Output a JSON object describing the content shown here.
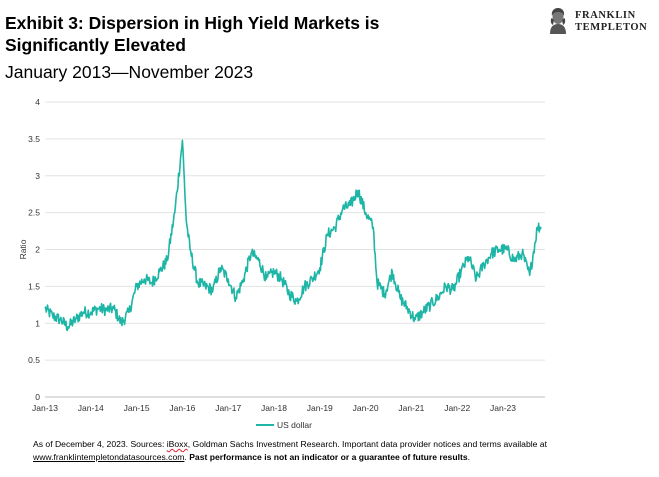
{
  "header": {
    "title": "Exhibit 3: Dispersion in High Yield Markets is Significantly Elevated",
    "subtitle": "January 2013—November 2023"
  },
  "logo": {
    "line1": "FRANKLIN",
    "line2": "TEMPLETON",
    "icon": "franklin-portrait-icon"
  },
  "chart_data": {
    "type": "line",
    "title": "",
    "xlabel": "",
    "ylabel": "Ratio",
    "ylim": [
      0,
      4
    ],
    "yticks": [
      "0",
      "0.5",
      "1",
      "1.5",
      "2",
      "2.5",
      "3",
      "3.5",
      "4"
    ],
    "xlim": [
      "2013-01",
      "2023-12"
    ],
    "xticks": [
      "Jan-13",
      "Jan-14",
      "Jan-15",
      "Jan-16",
      "Jan-17",
      "Jan-18",
      "Jan-19",
      "Jan-20",
      "Jan-21",
      "Jan-22",
      "Jan-23"
    ],
    "grid": "horizontal",
    "legend": "bottom-center",
    "series": [
      {
        "name": "US dollar",
        "color": "#1db5a6",
        "x": [
          "2013-01",
          "2013-03",
          "2013-05",
          "2013-07",
          "2013-09",
          "2013-11",
          "2014-01",
          "2014-03",
          "2014-05",
          "2014-07",
          "2014-09",
          "2014-11",
          "2015-01",
          "2015-03",
          "2015-05",
          "2015-07",
          "2015-09",
          "2015-11",
          "2016-01",
          "2016-02",
          "2016-03",
          "2016-05",
          "2016-07",
          "2016-09",
          "2016-11",
          "2017-01",
          "2017-03",
          "2017-05",
          "2017-07",
          "2017-09",
          "2017-11",
          "2018-01",
          "2018-03",
          "2018-05",
          "2018-07",
          "2018-09",
          "2018-11",
          "2019-01",
          "2019-03",
          "2019-05",
          "2019-07",
          "2019-09",
          "2019-11",
          "2020-01",
          "2020-03",
          "2020-04",
          "2020-06",
          "2020-08",
          "2020-10",
          "2020-12",
          "2021-02",
          "2021-04",
          "2021-06",
          "2021-08",
          "2021-10",
          "2021-12",
          "2022-02",
          "2022-04",
          "2022-06",
          "2022-08",
          "2022-10",
          "2022-12",
          "2023-02",
          "2023-04",
          "2023-06",
          "2023-08",
          "2023-10",
          "2023-11"
        ],
        "y": [
          1.2,
          1.1,
          1.05,
          0.95,
          1.05,
          1.15,
          1.15,
          1.2,
          1.18,
          1.2,
          1.0,
          1.15,
          1.5,
          1.6,
          1.55,
          1.7,
          1.85,
          2.5,
          3.48,
          2.4,
          2.0,
          1.55,
          1.5,
          1.45,
          1.75,
          1.6,
          1.35,
          1.6,
          1.95,
          1.85,
          1.6,
          1.7,
          1.6,
          1.4,
          1.3,
          1.5,
          1.6,
          1.75,
          2.2,
          2.3,
          2.55,
          2.6,
          2.8,
          2.5,
          2.3,
          1.55,
          1.4,
          1.7,
          1.35,
          1.2,
          1.05,
          1.15,
          1.25,
          1.35,
          1.5,
          1.45,
          1.7,
          1.9,
          1.6,
          1.8,
          1.95,
          2.0,
          2.0,
          1.85,
          1.95,
          1.65,
          2.3,
          2.3
        ]
      }
    ]
  },
  "footnote": {
    "prefix": "As of December 4, 2023. Sources: ",
    "iboxx": "iBoxx",
    "middle": ", Goldman Sachs Investment Research. Important data provider notices and terms available at",
    "link": "www.franklintempletondatasources.com",
    "dot": ".",
    "bold": "Past performance is not an indicator or a guarantee of future results",
    "end": "."
  }
}
